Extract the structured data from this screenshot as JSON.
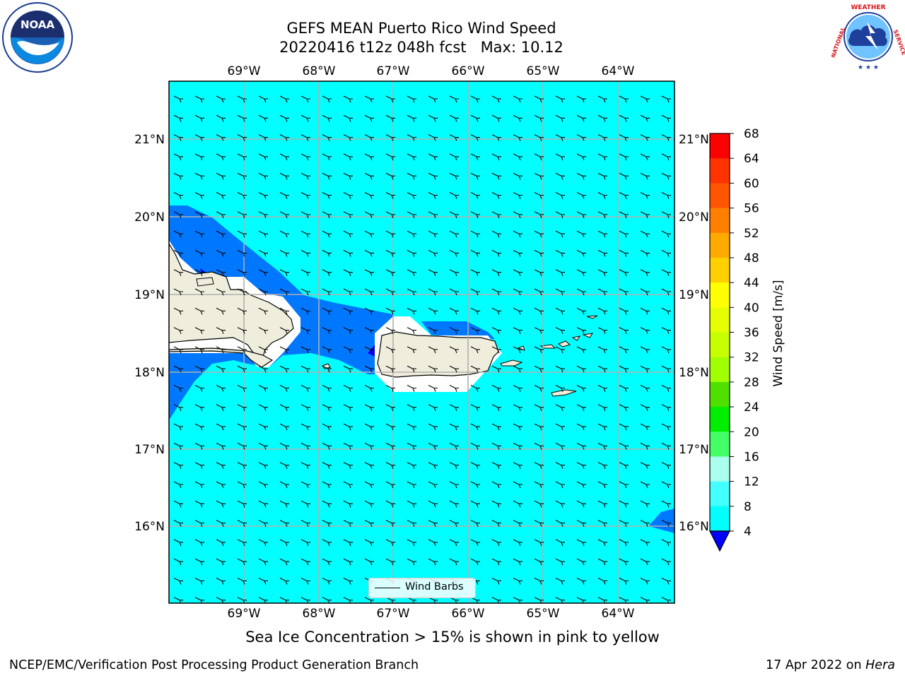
{
  "title": {
    "line1": "GEFS MEAN Puerto Rico Wind Speed",
    "line2": "20220416 t12z 048h fcst   Max: 10.12"
  },
  "axes": {
    "lon_labels": [
      "69°W",
      "68°W",
      "67°W",
      "66°W",
      "65°W",
      "64°W"
    ],
    "lat_labels": [
      "21°N",
      "20°N",
      "19°N",
      "18°N",
      "17°N",
      "16°N"
    ]
  },
  "colorbar": {
    "label": "Wind Speed [m/s]",
    "ticks": [
      "68",
      "64",
      "60",
      "56",
      "52",
      "48",
      "44",
      "40",
      "36",
      "32",
      "28",
      "24",
      "20",
      "16",
      "12",
      "8",
      "4"
    ],
    "colors": [
      "#ff0000",
      "#ff3300",
      "#ff5500",
      "#ff8000",
      "#ffaa00",
      "#ffd000",
      "#ffff00",
      "#e6ff00",
      "#c8ff00",
      "#a0ff00",
      "#50e000",
      "#00ee00",
      "#44ff66",
      "#aaffee",
      "#44ffff",
      "#00ffff",
      "#0077ff"
    ],
    "under_color": "#0000ff"
  },
  "legend": {
    "label": "Wind Barbs"
  },
  "caption": "Sea Ice Concentration > 15% is shown in pink to yellow",
  "footer": {
    "left": "NCEP/EMC/Verification Post Processing Product Generation Branch",
    "right_prefix": "17 Apr 2022 on ",
    "right_host": "Hera"
  },
  "logos": {
    "left": "noaa-logo",
    "right": "nws-logo",
    "left_text": "NOAA",
    "left_ring": "NATIONAL OCEANIC AND ATMOSPHERIC ADMINISTRATION · U.S. DEPARTMENT OF COMMERCE",
    "right_ring": "NATIONAL WEATHER SERVICE"
  },
  "colors": {
    "ocean_fill": "#00ffff",
    "wind_band": "#0077ff",
    "land": "#efeedc",
    "grid": "#b0b0b0"
  }
}
